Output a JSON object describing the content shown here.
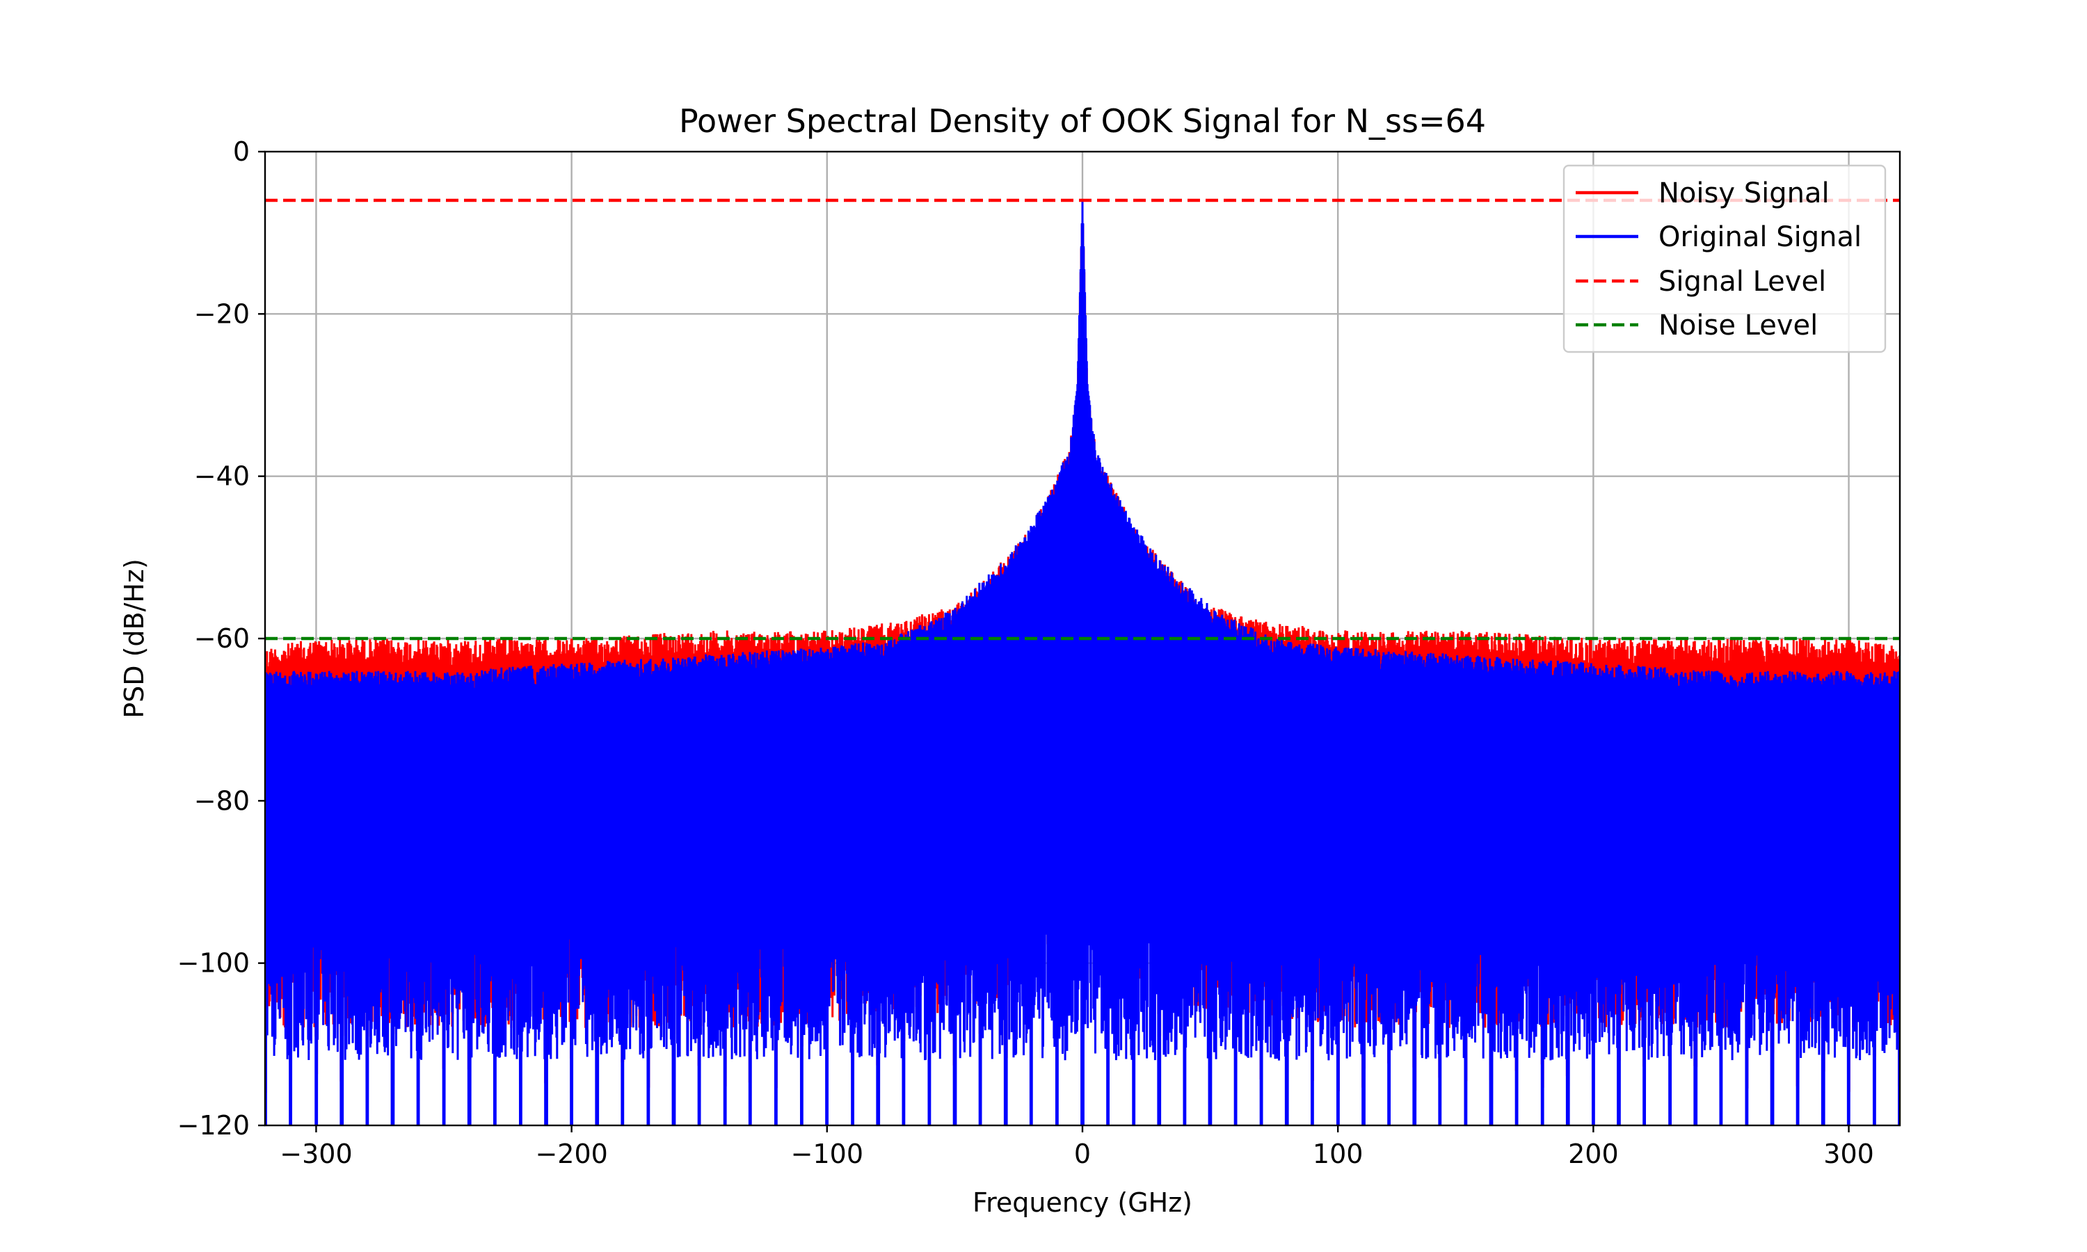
{
  "chart_data": {
    "type": "line",
    "title": "Power Spectral Density of OOK Signal for N_ss=64",
    "xlabel": "Frequency (GHz)",
    "ylabel": "PSD (dB/Hz)",
    "xlim": [
      -320,
      320
    ],
    "ylim": [
      -120,
      0
    ],
    "x_ticks": [
      -300,
      -200,
      -100,
      0,
      100,
      200,
      300
    ],
    "x_tick_labels": [
      "−300",
      "−200",
      "−100",
      "0",
      "100",
      "200",
      "300"
    ],
    "y_ticks": [
      0,
      -20,
      -40,
      -60,
      -80,
      -100,
      -120
    ],
    "y_tick_labels": [
      "0",
      "−20",
      "−40",
      "−60",
      "−80",
      "−100",
      "−120"
    ],
    "grid": true,
    "legend_position": "top-right",
    "series": [
      {
        "name": "Noisy Signal",
        "style": "solid",
        "color": "#ff0000",
        "envelope": {
          "x": [
            -320,
            -300,
            -250,
            -200,
            -150,
            -100,
            -75,
            -50,
            -40,
            -30,
            -20,
            -15,
            -10,
            -5,
            -2,
            0,
            2,
            5,
            10,
            15,
            20,
            30,
            40,
            50,
            75,
            100,
            150,
            200,
            250,
            300,
            320
          ],
          "y_max": [
            -61,
            -60,
            -60,
            -60,
            -59,
            -59,
            -58,
            -56,
            -53,
            -50,
            -46,
            -43,
            -40,
            -36,
            -30,
            -6,
            -30,
            -36,
            -40,
            -43,
            -46,
            -50,
            -53,
            -56,
            -58,
            -59,
            -59,
            -60,
            -60,
            -60,
            -61
          ],
          "y_min": [
            -108,
            -108,
            -108,
            -108,
            -108,
            -108,
            -107,
            -106,
            -105,
            -104,
            -102,
            -99,
            -97,
            -95,
            -94,
            -94,
            -94,
            -95,
            -97,
            -99,
            -102,
            -104,
            -105,
            -106,
            -107,
            -108,
            -108,
            -108,
            -108,
            -108,
            -108
          ]
        }
      },
      {
        "name": "Original Signal",
        "style": "solid",
        "color": "#0000ff",
        "envelope": {
          "x": [
            -320,
            -300,
            -250,
            -200,
            -150,
            -100,
            -75,
            -50,
            -40,
            -30,
            -20,
            -15,
            -10,
            -5,
            -2,
            0,
            2,
            5,
            10,
            15,
            20,
            30,
            40,
            50,
            75,
            100,
            150,
            200,
            250,
            300,
            320
          ],
          "y_max": [
            -64,
            -64,
            -64,
            -63,
            -62,
            -61,
            -60,
            -56,
            -53,
            -50,
            -46,
            -43,
            -40,
            -36,
            -29,
            -6,
            -29,
            -36,
            -40,
            -43,
            -46,
            -50,
            -53,
            -56,
            -60,
            -61,
            -62,
            -63,
            -64,
            -64,
            -64
          ],
          "y_min": [
            -120,
            -120,
            -120,
            -120,
            -120,
            -120,
            -120,
            -120,
            -120,
            -120,
            -120,
            -120,
            -120,
            -120,
            -120,
            -120,
            -120,
            -120,
            -120,
            -120,
            -120,
            -120,
            -120,
            -120,
            -120,
            -120,
            -120,
            -120,
            -120,
            -120,
            -120
          ]
        }
      },
      {
        "name": "Signal Level",
        "style": "dashed",
        "color": "#ff0000",
        "y": -6
      },
      {
        "name": "Noise Level",
        "style": "dashed",
        "color": "#008000",
        "y": -60
      }
    ]
  }
}
